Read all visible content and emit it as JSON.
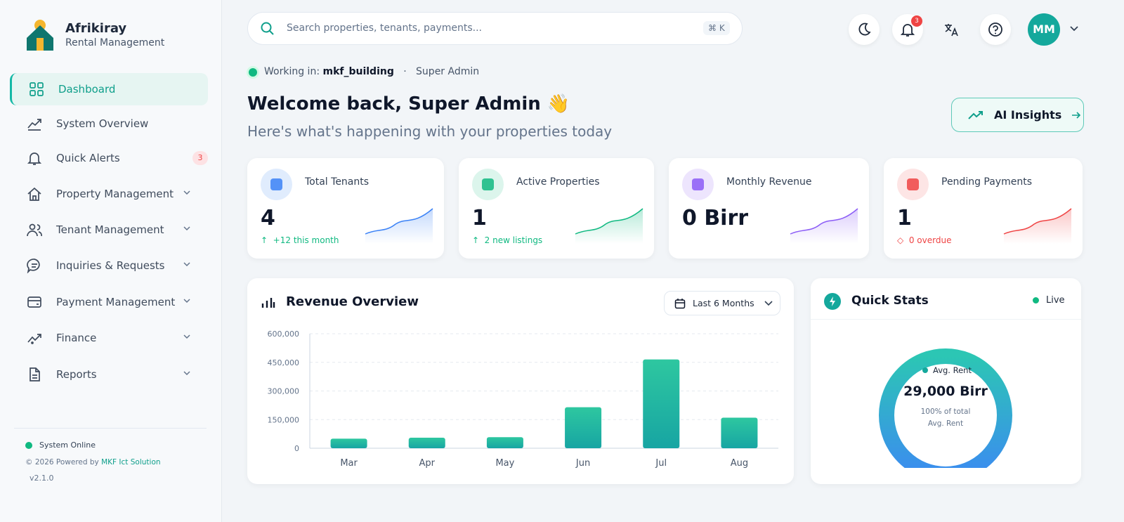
{
  "sidebar": {
    "brand": "Afrikiray",
    "tagline": "Rental Management",
    "nav": [
      {
        "label": "Dashboard"
      },
      {
        "label": "System Overview"
      },
      {
        "label": "Quick Alerts",
        "badge": "3"
      },
      {
        "label": "Property Management"
      },
      {
        "label": "Tenant Management"
      },
      {
        "label": "Inquiries & Requests"
      },
      {
        "label": "Payment Management"
      },
      {
        "label": "Finance"
      },
      {
        "label": "Reports"
      }
    ],
    "status": "System Online",
    "copyright": "© 2026 Powered by",
    "company": "MKF Ict Solution",
    "version": "v2.1.0"
  },
  "topbar": {
    "search_placeholder": "Search properties, tenants, payments...",
    "shortcut": "⌘ K",
    "notification_count": "3",
    "avatar": "MM"
  },
  "context": {
    "prefix": "Working in:",
    "workspace": "mkf_building",
    "separator": "·",
    "role": "Super Admin"
  },
  "header": {
    "title": "Welcome back, Super Admin 👋",
    "subtitle": "Here's what's happening with your properties today",
    "button": "AI Insights"
  },
  "stats": [
    {
      "title": "Total Tenants",
      "value": "4",
      "change": "↑  +12 this month"
    },
    {
      "title": "Active Properties",
      "value": "1",
      "change": "↑  2 new listings"
    },
    {
      "title": "Monthly Revenue",
      "value": "0 Birr"
    },
    {
      "title": "Pending Payments",
      "value": "1",
      "change": "◇  0 overdue"
    }
  ],
  "revenue_chart": {
    "type": "bar",
    "title": "Revenue Overview",
    "period": "Last 6 Months",
    "categories": [
      "Mar",
      "Apr",
      "May",
      "Jun",
      "Jul",
      "Aug"
    ],
    "values": [
      50000,
      55000,
      58000,
      215000,
      465000,
      160000
    ],
    "ylim": [
      0,
      600000
    ],
    "yticks": [
      {
        "value": 0,
        "label": "0"
      },
      {
        "value": 150000,
        "label": "150,000"
      },
      {
        "value": 300000,
        "label": "300,000"
      },
      {
        "value": 450000,
        "label": "450,000"
      },
      {
        "value": 600000,
        "label": "600,000"
      }
    ],
    "grid": true
  },
  "quick_stats": {
    "title": "Quick Stats",
    "status": "Live",
    "metric_label": "Avg. Rent",
    "metric_value": "29,000 Birr",
    "share": "100% of total",
    "share_label": "Avg. Rent"
  }
}
